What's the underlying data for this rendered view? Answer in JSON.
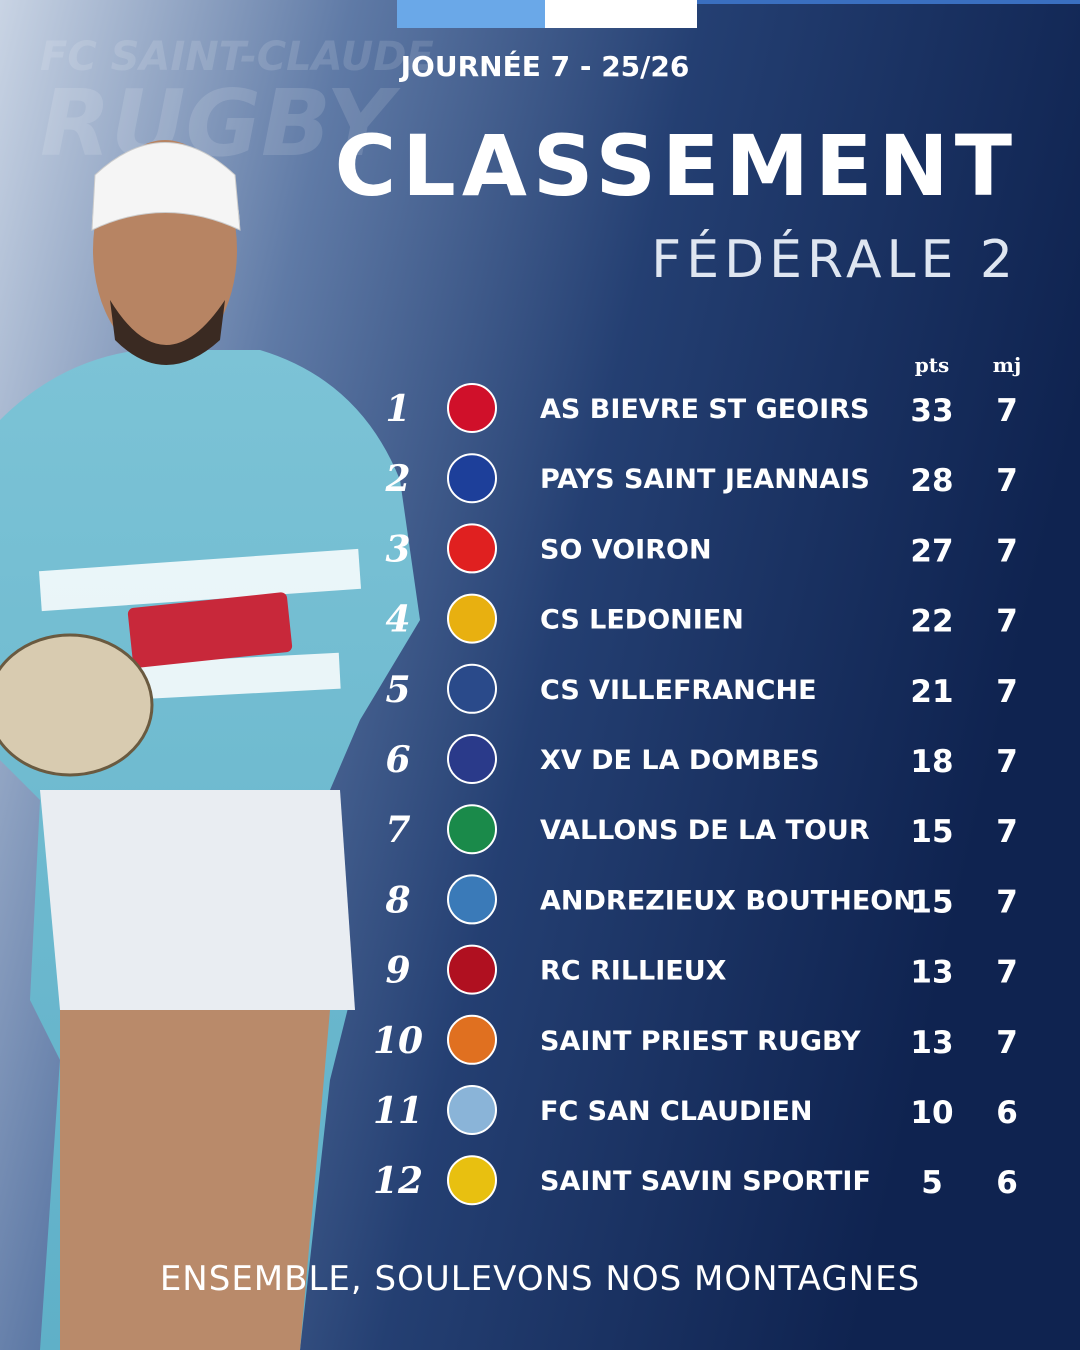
{
  "header": {
    "watermark": [
      "FC SAINT-CLAUDE",
      "RUGBY"
    ],
    "matchday": "JOURNÉE 7 - 25/26",
    "title": "CLASSEMENT",
    "subtitle": "FÉDÉRALE 2"
  },
  "table": {
    "columns": [
      "pts",
      "mj"
    ],
    "highlight_color": "#4aa8e6",
    "rows": [
      {
        "rank": 1,
        "team": "AS BIEVRE ST GEOIRS",
        "pts": 33,
        "mj": 7
      },
      {
        "rank": 2,
        "team": "PAYS SAINT JEANNAIS",
        "pts": 28,
        "mj": 7
      },
      {
        "rank": 3,
        "team": "SO VOIRON",
        "pts": 27,
        "mj": 7
      },
      {
        "rank": 4,
        "team": "CS LEDONIEN",
        "pts": 22,
        "mj": 7
      },
      {
        "rank": 5,
        "team": "CS VILLEFRANCHE",
        "pts": 21,
        "mj": 7
      },
      {
        "rank": 6,
        "team": "XV DE LA DOMBES",
        "pts": 18,
        "mj": 7
      },
      {
        "rank": 7,
        "team": "VALLONS DE LA TOUR",
        "pts": 15,
        "mj": 7
      },
      {
        "rank": 8,
        "team": "ANDREZIEUX BOUTHEON",
        "pts": 15,
        "mj": 7
      },
      {
        "rank": 9,
        "team": "RC RILLIEUX",
        "pts": 13,
        "mj": 7
      },
      {
        "rank": 10,
        "team": "SAINT PRIEST RUGBY",
        "pts": 13,
        "mj": 7
      },
      {
        "rank": 11,
        "team": "FC SAN CLAUDIEN",
        "pts": 10,
        "mj": 6,
        "highlight": true
      },
      {
        "rank": 12,
        "team": "SAINT SAVIN SPORTIF",
        "pts": 5,
        "mj": 6
      }
    ]
  },
  "footer": "ENSEMBLE, SOULEVONS NOS MONTAGNES"
}
